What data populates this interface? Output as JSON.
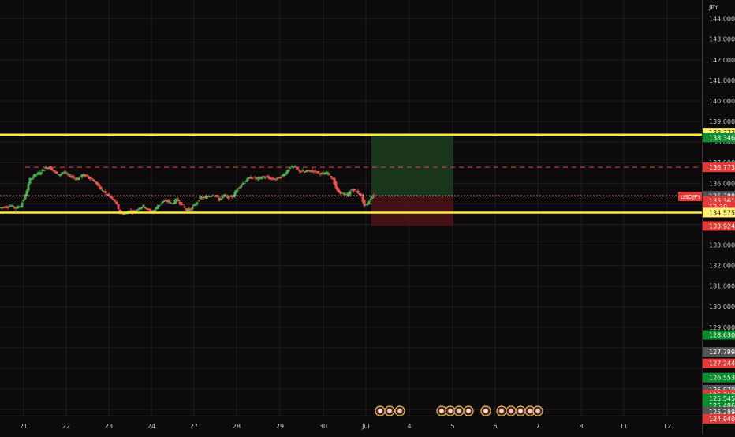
{
  "currency_label": "JPY",
  "colors": {
    "background": "#0d0a0b",
    "grid": "#1f1c1d",
    "axis_text": "#c8c8c8",
    "candle_up": "#26a69a",
    "candle_down": "#ef5350",
    "candle_up_alt": "#4caf50",
    "support_resistance": "#ffeb3b",
    "dashed_line": "#ff3b3b",
    "current_price_line": "#ffffff",
    "target_zone": "#1b3b1f",
    "stop_zone": "#4a1216",
    "green_tag": "#0a8f2e",
    "red_tag": "#e53935",
    "gray_tag": "#555555",
    "yellow_tag": "#fff170"
  },
  "chart_data": {
    "type": "candlestick",
    "symbol": "USDJPY",
    "y_range": [
      124.7,
      144.6
    ],
    "y_ticks": [
      "129.000",
      "130.000",
      "131.000",
      "132.000",
      "133.000",
      "134.000",
      "136.000",
      "137.000",
      "138.000",
      "139.000",
      "140.000",
      "141.000",
      "142.000",
      "143.000",
      "144.000"
    ],
    "x_ticks": [
      "21",
      "22",
      "23",
      "24",
      "27",
      "28",
      "29",
      "30",
      "Jul",
      "4",
      "5",
      "6",
      "7",
      "8",
      "11",
      "12"
    ],
    "series_ohlc_path": [
      [
        0,
        134.8
      ],
      [
        8,
        134.85
      ],
      [
        16,
        134.9
      ],
      [
        22,
        134.8
      ],
      [
        28,
        134.9
      ],
      [
        34,
        135.4
      ],
      [
        40,
        136.2
      ],
      [
        46,
        136.4
      ],
      [
        52,
        136.5
      ],
      [
        58,
        136.7
      ],
      [
        64,
        136.8
      ],
      [
        70,
        136.6
      ],
      [
        76,
        136.4
      ],
      [
        82,
        136.55
      ],
      [
        88,
        136.4
      ],
      [
        94,
        136.3
      ],
      [
        100,
        136.2
      ],
      [
        106,
        136.4
      ],
      [
        112,
        136.35
      ],
      [
        118,
        136.2
      ],
      [
        124,
        136.0
      ],
      [
        130,
        135.7
      ],
      [
        136,
        135.5
      ],
      [
        142,
        135.3
      ],
      [
        148,
        135.1
      ],
      [
        154,
        134.6
      ],
      [
        160,
        134.5
      ],
      [
        166,
        134.7
      ],
      [
        172,
        134.6
      ],
      [
        178,
        134.8
      ],
      [
        184,
        134.9
      ],
      [
        190,
        134.7
      ],
      [
        196,
        134.6
      ],
      [
        202,
        134.9
      ],
      [
        208,
        135.1
      ],
      [
        214,
        135.15
      ],
      [
        220,
        135.0
      ],
      [
        226,
        135.2
      ],
      [
        232,
        135.0
      ],
      [
        238,
        134.7
      ],
      [
        244,
        134.75
      ],
      [
        250,
        135.0
      ],
      [
        256,
        135.3
      ],
      [
        262,
        135.3
      ],
      [
        268,
        135.4
      ],
      [
        274,
        135.45
      ],
      [
        280,
        135.2
      ],
      [
        286,
        135.4
      ],
      [
        292,
        135.3
      ],
      [
        298,
        135.4
      ],
      [
        304,
        135.8
      ],
      [
        310,
        136.0
      ],
      [
        316,
        136.2
      ],
      [
        322,
        136.3
      ],
      [
        328,
        136.2
      ],
      [
        334,
        136.3
      ],
      [
        340,
        136.3
      ],
      [
        346,
        136.2
      ],
      [
        352,
        136.2
      ],
      [
        358,
        136.3
      ],
      [
        364,
        136.5
      ],
      [
        370,
        136.8
      ],
      [
        376,
        136.75
      ],
      [
        382,
        136.6
      ],
      [
        388,
        136.55
      ],
      [
        394,
        136.6
      ],
      [
        400,
        136.6
      ],
      [
        406,
        136.5
      ],
      [
        412,
        136.45
      ],
      [
        418,
        136.5
      ],
      [
        424,
        136.2
      ],
      [
        430,
        135.6
      ],
      [
        436,
        135.5
      ],
      [
        442,
        135.4
      ],
      [
        448,
        135.7
      ],
      [
        454,
        135.6
      ],
      [
        460,
        135.4
      ],
      [
        464,
        134.9
      ],
      [
        468,
        135.0
      ],
      [
        472,
        135.3
      ],
      [
        476,
        135.4
      ]
    ],
    "horizontal_lines": [
      {
        "label": "resistance",
        "price": 138.36
      },
      {
        "label": "support",
        "price": 134.575
      },
      {
        "label": "dashed",
        "price": 136.773
      },
      {
        "label": "current",
        "price": 135.388
      }
    ],
    "position": {
      "target_price": 138.373,
      "entry_price": 135.361,
      "stop_price": 133.924
    },
    "price_tags": [
      {
        "text": "138.373",
        "price": 138.46,
        "style": "yellow"
      },
      {
        "text": "138.346",
        "price": 138.22,
        "style": "green"
      },
      {
        "text": "136.773",
        "price": 136.773,
        "style": "red"
      },
      {
        "text": "135.388",
        "price": 135.388,
        "style": "gray"
      },
      {
        "text": "135.361",
        "price": 135.14,
        "style": "red"
      },
      {
        "text": "12:30",
        "price": 134.86,
        "style": "red"
      },
      {
        "text": "134.575",
        "price": 134.575,
        "style": "yellow"
      },
      {
        "text": "133.924",
        "price": 133.924,
        "style": "red"
      },
      {
        "text": "128.630",
        "price": 128.63,
        "style": "green"
      },
      {
        "text": "127.799",
        "price": 127.799,
        "style": "gray"
      },
      {
        "text": "127.244",
        "price": 127.244,
        "style": "red"
      },
      {
        "text": "126.553",
        "price": 126.553,
        "style": "green"
      },
      {
        "text": "125.970",
        "price": 125.97,
        "style": "gray"
      },
      {
        "text": "125.718",
        "price": 125.718,
        "style": "red"
      },
      {
        "text": "125.545",
        "price": 125.545,
        "style": "green"
      },
      {
        "text": "125.486",
        "price": 125.2,
        "style": "green"
      },
      {
        "text": "125.289",
        "price": 124.9,
        "style": "gray"
      },
      {
        "text": "124.940",
        "price": 124.55,
        "style": "red"
      }
    ],
    "symbol_tag": "USDJPY",
    "events": [
      {
        "day": "Jul",
        "count": 3
      },
      {
        "day": "5",
        "count": 4
      },
      {
        "day": "6",
        "count": 5
      }
    ],
    "grid": true
  }
}
